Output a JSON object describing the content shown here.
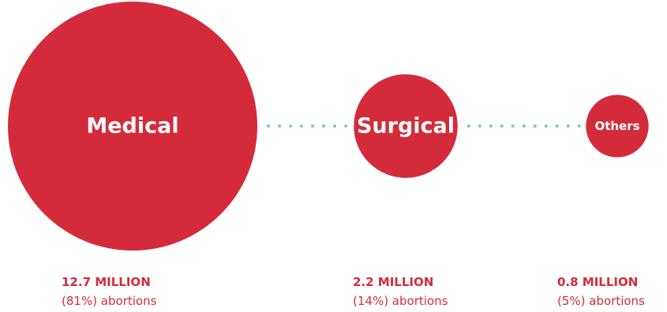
{
  "chart_data": {
    "type": "bubble",
    "title": "",
    "categories": [
      "Medical",
      "Surgical",
      "Others"
    ],
    "values_million": [
      12.7,
      2.2,
      0.8
    ],
    "percent": [
      81,
      14,
      5
    ],
    "counts": [
      "12.7 MILLION",
      "2.2 MILLION",
      "0.8 MILLION"
    ],
    "shares": [
      "(81%) abortions",
      "(14%) abortions",
      "(5%) abortions"
    ],
    "connector": "dotted"
  },
  "colors": {
    "bubble": "#d42b3a",
    "connector": "#7fc8c4",
    "label": "#ffffff",
    "text": "#d42b3a"
  }
}
